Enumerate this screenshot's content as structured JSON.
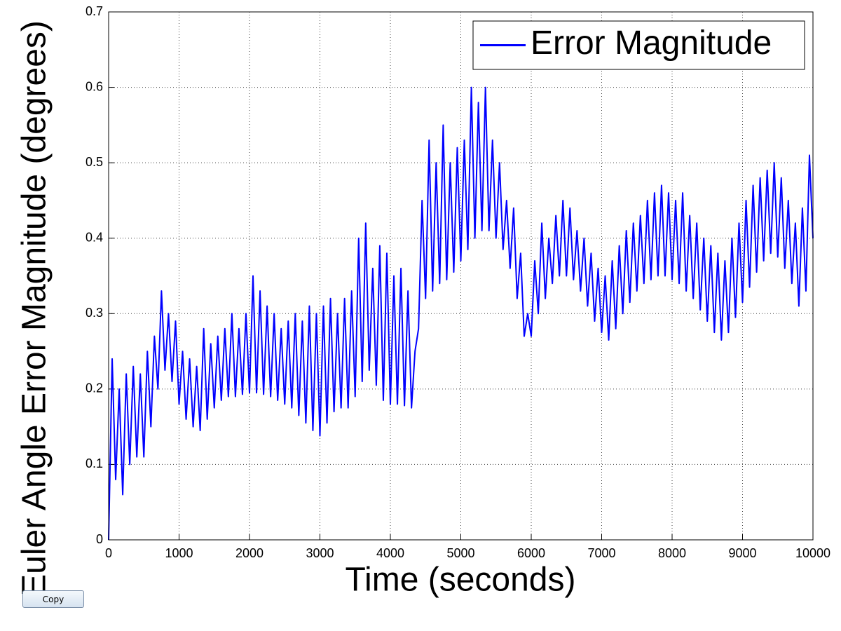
{
  "chart_data": {
    "type": "line",
    "x_label": "Time (seconds)",
    "y_label": "Euler Angle Error Magnitude (degrees)",
    "x": [
      0,
      50,
      100,
      150,
      200,
      250,
      300,
      350,
      400,
      450,
      500,
      550,
      600,
      650,
      700,
      750,
      800,
      850,
      900,
      950,
      1000,
      1050,
      1100,
      1150,
      1200,
      1250,
      1300,
      1350,
      1400,
      1450,
      1500,
      1550,
      1600,
      1650,
      1700,
      1750,
      1800,
      1850,
      1900,
      1950,
      2000,
      2050,
      2100,
      2150,
      2200,
      2250,
      2300,
      2350,
      2400,
      2450,
      2500,
      2550,
      2600,
      2650,
      2700,
      2750,
      2800,
      2850,
      2900,
      2950,
      3000,
      3050,
      3100,
      3150,
      3200,
      3250,
      3300,
      3350,
      3400,
      3450,
      3500,
      3550,
      3600,
      3650,
      3700,
      3750,
      3800,
      3850,
      3900,
      3950,
      4000,
      4050,
      4100,
      4150,
      4200,
      4250,
      4300,
      4350,
      4400,
      4450,
      4500,
      4550,
      4600,
      4650,
      4700,
      4750,
      4800,
      4850,
      4900,
      4950,
      5000,
      5050,
      5100,
      5150,
      5200,
      5250,
      5300,
      5350,
      5400,
      5450,
      5500,
      5550,
      5600,
      5650,
      5700,
      5750,
      5800,
      5850,
      5900,
      5950,
      6000,
      6050,
      6100,
      6150,
      6200,
      6250,
      6300,
      6350,
      6400,
      6450,
      6500,
      6550,
      6600,
      6650,
      6700,
      6750,
      6800,
      6850,
      6900,
      6950,
      7000,
      7050,
      7100,
      7150,
      7200,
      7250,
      7300,
      7350,
      7400,
      7450,
      7500,
      7550,
      7600,
      7650,
      7700,
      7750,
      7800,
      7850,
      7900,
      7950,
      8000,
      8050,
      8100,
      8150,
      8200,
      8250,
      8300,
      8350,
      8400,
      8450,
      8500,
      8550,
      8600,
      8650,
      8700,
      8750,
      8800,
      8850,
      8900,
      8950,
      9000,
      9050,
      9100,
      9150,
      9200,
      9250,
      9300,
      9350,
      9400,
      9450,
      9500,
      9550,
      9600,
      9650,
      9700,
      9750,
      9800,
      9850,
      9900,
      9950,
      10000
    ],
    "series": [
      {
        "name": "Error Magnitude",
        "color": "#0000ff",
        "values": [
          0,
          0.24,
          0.08,
          0.2,
          0.06,
          0.22,
          0.1,
          0.23,
          0.11,
          0.22,
          0.11,
          0.25,
          0.15,
          0.27,
          0.2,
          0.33,
          0.225,
          0.3,
          0.21,
          0.29,
          0.18,
          0.25,
          0.16,
          0.24,
          0.15,
          0.23,
          0.145,
          0.28,
          0.16,
          0.26,
          0.175,
          0.27,
          0.185,
          0.28,
          0.19,
          0.3,
          0.19,
          0.28,
          0.193,
          0.3,
          0.195,
          0.35,
          0.195,
          0.33,
          0.193,
          0.31,
          0.19,
          0.3,
          0.185,
          0.28,
          0.18,
          0.29,
          0.175,
          0.3,
          0.165,
          0.29,
          0.155,
          0.31,
          0.145,
          0.3,
          0.138,
          0.31,
          0.155,
          0.32,
          0.17,
          0.3,
          0.175,
          0.32,
          0.175,
          0.33,
          0.19,
          0.4,
          0.21,
          0.42,
          0.225,
          0.36,
          0.205,
          0.39,
          0.185,
          0.38,
          0.18,
          0.35,
          0.18,
          0.36,
          0.178,
          0.33,
          0.175,
          0.25,
          0.28,
          0.45,
          0.32,
          0.53,
          0.33,
          0.5,
          0.34,
          0.55,
          0.345,
          0.5,
          0.355,
          0.52,
          0.37,
          0.53,
          0.385,
          0.6,
          0.4,
          0.58,
          0.41,
          0.6,
          0.41,
          0.53,
          0.4,
          0.5,
          0.385,
          0.45,
          0.36,
          0.44,
          0.32,
          0.38,
          0.27,
          0.3,
          0.27,
          0.37,
          0.3,
          0.42,
          0.32,
          0.4,
          0.34,
          0.43,
          0.35,
          0.45,
          0.35,
          0.44,
          0.345,
          0.41,
          0.33,
          0.4,
          0.31,
          0.38,
          0.29,
          0.36,
          0.275,
          0.35,
          0.265,
          0.37,
          0.28,
          0.39,
          0.3,
          0.41,
          0.315,
          0.42,
          0.33,
          0.43,
          0.34,
          0.45,
          0.345,
          0.46,
          0.35,
          0.47,
          0.35,
          0.46,
          0.345,
          0.45,
          0.34,
          0.46,
          0.33,
          0.43,
          0.32,
          0.42,
          0.305,
          0.4,
          0.29,
          0.39,
          0.275,
          0.38,
          0.265,
          0.37,
          0.275,
          0.4,
          0.295,
          0.42,
          0.315,
          0.45,
          0.335,
          0.47,
          0.355,
          0.48,
          0.37,
          0.49,
          0.38,
          0.5,
          0.375,
          0.48,
          0.36,
          0.45,
          0.34,
          0.42,
          0.31,
          0.44,
          0.33,
          0.51,
          0.4
        ]
      }
    ],
    "xlim": [
      0,
      10000
    ],
    "xticks": [
      0,
      1000,
      2000,
      3000,
      4000,
      5000,
      6000,
      7000,
      8000,
      9000,
      10000
    ],
    "ylim": [
      0,
      0.7
    ],
    "yticks": [
      0,
      0.1,
      0.2,
      0.3,
      0.4,
      0.5,
      0.6,
      0.7
    ],
    "grid": true,
    "legend": "northeast"
  },
  "ui": {
    "copy_button": "Copy"
  }
}
